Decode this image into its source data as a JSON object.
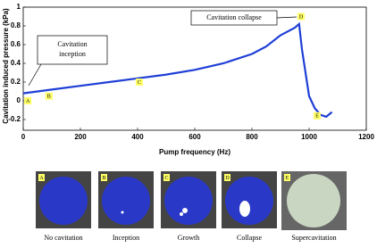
{
  "chart_data": {
    "type": "line",
    "y_label": "Cavitation induced pressure (kPa)",
    "x_label": "Pump frequency (Hz)",
    "x": [
      0,
      50,
      100,
      200,
      300,
      400,
      500,
      600,
      700,
      800,
      850,
      900,
      950,
      965,
      975,
      985,
      1000,
      1020,
      1040,
      1060,
      1080
    ],
    "series": [
      {
        "color": "#1f3fd6",
        "values": [
          0.08,
          0.1,
          0.12,
          0.16,
          0.2,
          0.24,
          0.28,
          0.33,
          0.4,
          0.5,
          0.58,
          0.7,
          0.78,
          0.82,
          0.55,
          0.35,
          0.05,
          -0.08,
          -0.15,
          -0.17,
          -0.12
        ]
      }
    ],
    "xlim": [
      0,
      1200
    ],
    "xticks": [
      0,
      200,
      400,
      600,
      800,
      1000,
      1200
    ],
    "ylim": [
      -0.2,
      1
    ],
    "yticks": [
      -0.2,
      0,
      0.2,
      0.4,
      0.6,
      0.8,
      1
    ],
    "point_labels": [
      {
        "label": "A",
        "x": 16,
        "y": 0
      },
      {
        "label": "B",
        "x": 90,
        "y": 0.05
      },
      {
        "label": "C",
        "x": 406,
        "y": 0.2
      },
      {
        "label": "D",
        "x": 972,
        "y": 0.9
      },
      {
        "label": "E",
        "x": 1028,
        "y": -0.16
      }
    ],
    "annotations": [
      {
        "lines": [
          "Cavitation",
          "inception"
        ]
      },
      {
        "lines": [
          "Cavitation collapse"
        ]
      }
    ]
  },
  "figure_panels": [
    {
      "letter": "A",
      "caption": "No cavitation"
    },
    {
      "letter": "B",
      "caption": "Inception"
    },
    {
      "letter": "C",
      "caption": "Growth"
    },
    {
      "letter": "D",
      "caption": "Collapse"
    },
    {
      "letter": "E",
      "caption": "Supercavitation"
    }
  ]
}
